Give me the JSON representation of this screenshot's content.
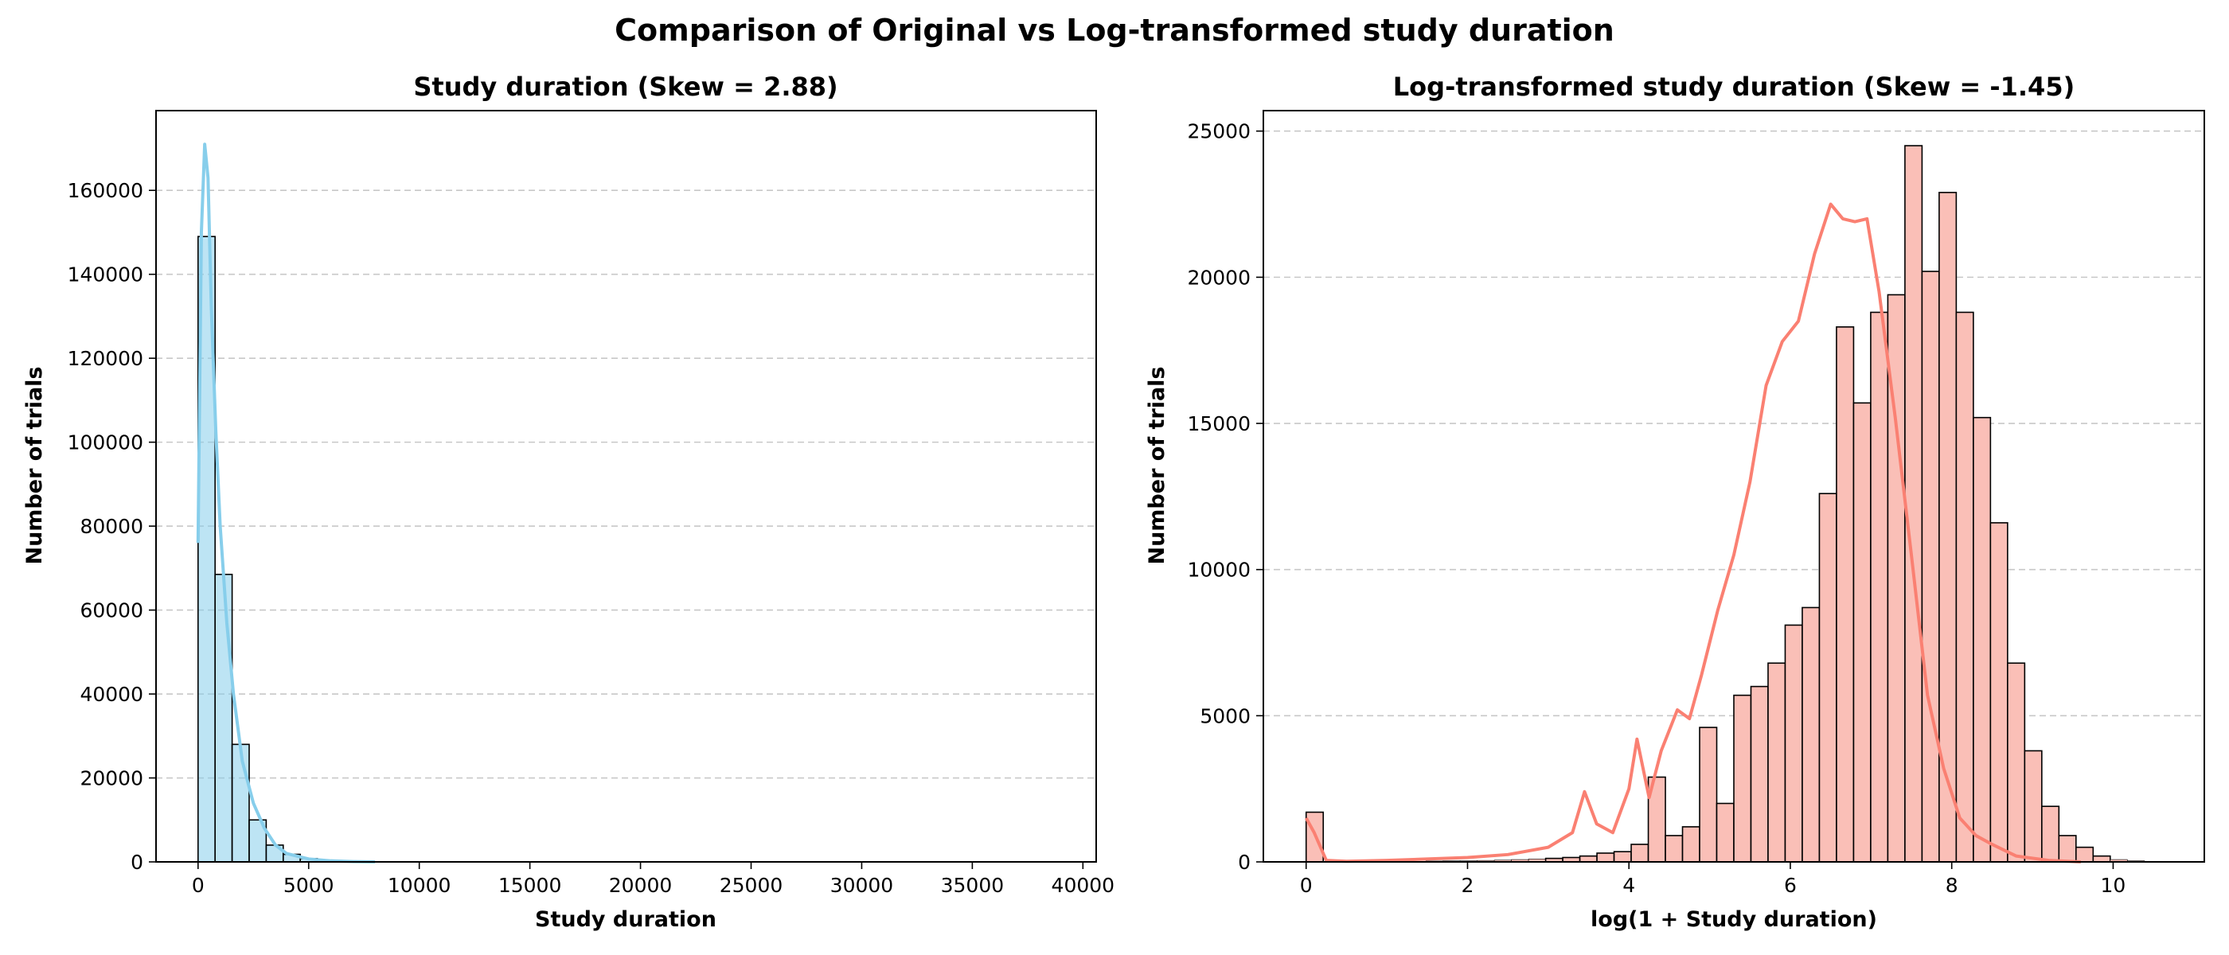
{
  "figure": {
    "suptitle": "Comparison of Original vs Log-transformed study duration"
  },
  "chart_data": [
    {
      "type": "bar",
      "title": "Study duration (Skew = 2.88)",
      "xlabel": "Study duration",
      "ylabel": "Number of trials",
      "xlim": [
        -1900,
        40600
      ],
      "ylim": [
        0,
        179000
      ],
      "xticks": [
        0,
        5000,
        10000,
        15000,
        20000,
        25000,
        30000,
        35000,
        40000
      ],
      "yticks": [
        0,
        20000,
        40000,
        60000,
        80000,
        100000,
        120000,
        140000,
        160000
      ],
      "grid": "y-dashed",
      "bin_width": 770,
      "bin_start": 0,
      "values": [
        149000,
        68500,
        28000,
        10000,
        4000,
        1800,
        800,
        400,
        200,
        120,
        80,
        50,
        30,
        20,
        15,
        10,
        8,
        6,
        5,
        4,
        3,
        3,
        2,
        2,
        2,
        1,
        1,
        1,
        1,
        1,
        1,
        1,
        1,
        0,
        0,
        0,
        0,
        0,
        0,
        0,
        0,
        0,
        0,
        0,
        0,
        0,
        0,
        0,
        0,
        1
      ],
      "kde": {
        "x": [
          0,
          150,
          300,
          450,
          600,
          800,
          1000,
          1300,
          1600,
          2000,
          2500,
          3000,
          3500,
          4000,
          5000,
          6000,
          7000,
          8000
        ],
        "y": [
          76000,
          150000,
          171000,
          163000,
          132000,
          103000,
          80000,
          57000,
          40000,
          24000,
          14000,
          8000,
          4000,
          2000,
          700,
          250,
          80,
          0
        ]
      },
      "colors": {
        "bar": "#87ceeb",
        "line": "#87ceeb",
        "edge": "#000000"
      }
    },
    {
      "type": "bar",
      "title": "Log-transformed study duration (Skew = -1.45)",
      "xlabel": "log(1 + Study duration)",
      "ylabel": "Number of trials",
      "xlim": [
        -0.53,
        11.13
      ],
      "ylim": [
        0,
        25700
      ],
      "xticks": [
        0,
        2,
        4,
        6,
        8,
        10
      ],
      "yticks": [
        0,
        5000,
        10000,
        15000,
        20000,
        25000
      ],
      "grid": "y-dashed",
      "bin_width": 0.212,
      "bin_start": 0,
      "values": [
        1700,
        10,
        10,
        20,
        30,
        20,
        20,
        30,
        40,
        40,
        50,
        60,
        80,
        100,
        120,
        150,
        200,
        300,
        350,
        600,
        2900,
        900,
        1200,
        4600,
        2000,
        5700,
        6000,
        6800,
        8100,
        8700,
        12600,
        18300,
        15700,
        18800,
        19400,
        24500,
        20200,
        22900,
        18800,
        15200,
        11600,
        6800,
        3800,
        1900,
        900,
        500,
        200,
        80,
        40,
        20
      ],
      "kde": {
        "x": [
          0,
          0.1,
          0.25,
          0.5,
          1.0,
          2.0,
          2.5,
          3.0,
          3.3,
          3.45,
          3.6,
          3.8,
          4.0,
          4.1,
          4.25,
          4.4,
          4.6,
          4.75,
          4.9,
          5.1,
          5.3,
          5.5,
          5.7,
          5.9,
          6.1,
          6.3,
          6.5,
          6.65,
          6.8,
          6.95,
          7.1,
          7.3,
          7.5,
          7.7,
          7.9,
          8.1,
          8.3,
          8.5,
          8.8,
          9.2,
          9.6
        ],
        "y": [
          1500,
          1000,
          50,
          20,
          50,
          150,
          250,
          500,
          1000,
          2400,
          1300,
          1000,
          2500,
          4200,
          2200,
          3800,
          5200,
          4900,
          6400,
          8600,
          10500,
          13000,
          16300,
          17800,
          18500,
          20800,
          22500,
          22000,
          21900,
          22000,
          19500,
          15200,
          10500,
          5700,
          3200,
          1500,
          900,
          600,
          200,
          50,
          0
        ]
      },
      "colors": {
        "bar": "#fabfb7",
        "line": "#fa8072",
        "edge": "#000000"
      }
    }
  ]
}
